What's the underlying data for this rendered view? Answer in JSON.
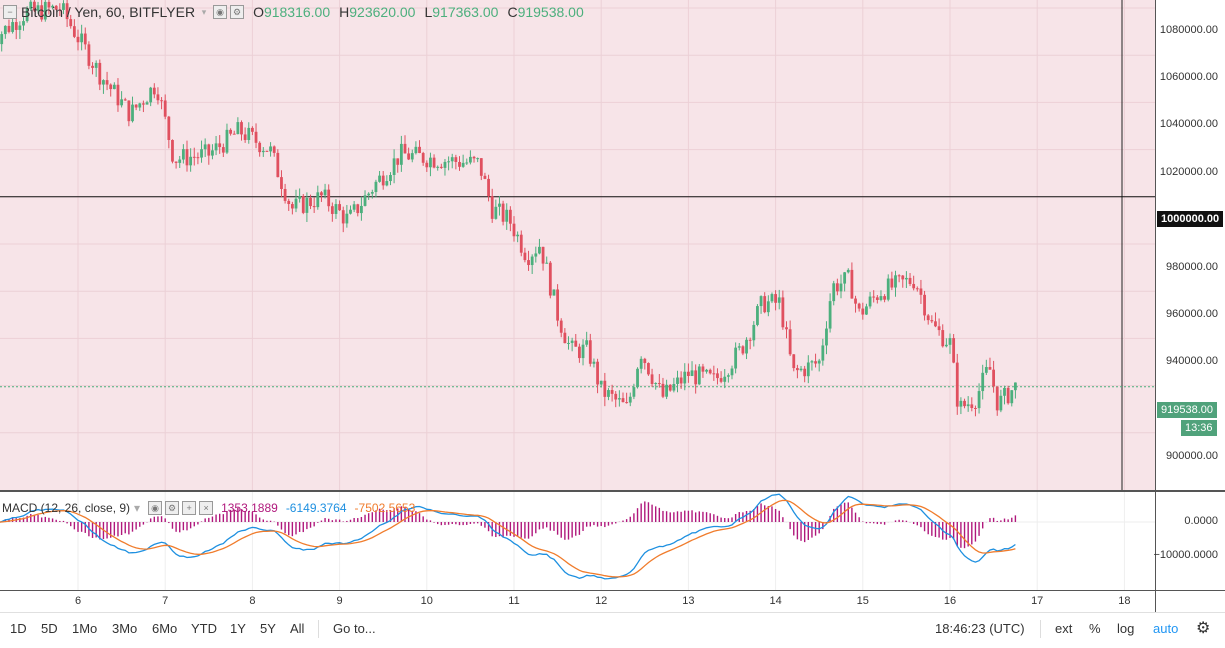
{
  "legend": {
    "title": "Bitcoin / Yen, 60, BITFLYER",
    "open_label": "O",
    "open_value": "918316.00",
    "high_label": "H",
    "high_value": "923620.00",
    "low_label": "L",
    "low_value": "917363.00",
    "close_label": "C",
    "close_value": "919538.00"
  },
  "macd": {
    "label": "MACD (12, 26, close, 9)",
    "hist_value": "1353.1889",
    "macd_value": "-6149.3764",
    "signal_value": "-7502.5653",
    "axis_labels": [
      "0.0000",
      "−10000.0000"
    ],
    "macd_color": "#1e90e0",
    "signal_color": "#f07c2c",
    "hist_color": "#b0187c"
  },
  "price_axis": {
    "labels": [
      "1080000.00",
      "1060000.00",
      "1040000.00",
      "1020000.00",
      "980000.00",
      "960000.00",
      "940000.00",
      "900000.00"
    ],
    "level_label": "1000000.00",
    "last_price_label": "919538.00",
    "countdown": "13:36"
  },
  "time_axis": {
    "labels": [
      "6",
      "7",
      "8",
      "9",
      "10",
      "11",
      "12",
      "13",
      "14",
      "15",
      "16",
      "17",
      "18"
    ]
  },
  "bottom_bar": {
    "timeframes": [
      "1D",
      "5D",
      "1Mo",
      "3Mo",
      "6Mo",
      "YTD",
      "1Y",
      "5Y",
      "All"
    ],
    "goto": "Go to...",
    "clock": "18:46:23 (UTC)",
    "ext": "ext",
    "percent": "%",
    "log": "log",
    "auto": "auto"
  },
  "colors": {
    "up": "#4caf7d",
    "down": "#e0505f",
    "pane_bg": "#f7e4e8"
  },
  "chart_data": {
    "type": "candlestick",
    "title": "Bitcoin / Yen, 60, BITFLYER",
    "x_ticks": [
      "6",
      "7",
      "8",
      "9",
      "10",
      "11",
      "12",
      "13",
      "14",
      "15",
      "16",
      "17",
      "18"
    ],
    "ylim": [
      880000,
      1090000
    ],
    "horizontal_level": 1000000,
    "last_price": 919538,
    "anchors": [
      {
        "day": 5.0,
        "price": 1066000
      },
      {
        "day": 5.4,
        "price": 1078000
      },
      {
        "day": 5.8,
        "price": 1080000
      },
      {
        "day": 6.25,
        "price": 1052000
      },
      {
        "day": 6.6,
        "price": 1035000
      },
      {
        "day": 6.9,
        "price": 1048000
      },
      {
        "day": 7.1,
        "price": 1016000
      },
      {
        "day": 7.5,
        "price": 1018000
      },
      {
        "day": 7.85,
        "price": 1028000
      },
      {
        "day": 8.2,
        "price": 1020000
      },
      {
        "day": 8.45,
        "price": 995000
      },
      {
        "day": 8.8,
        "price": 1000000
      },
      {
        "day": 9.1,
        "price": 990000
      },
      {
        "day": 9.4,
        "price": 1005000
      },
      {
        "day": 9.7,
        "price": 1018000
      },
      {
        "day": 10.1,
        "price": 1016000
      },
      {
        "day": 10.6,
        "price": 1014000
      },
      {
        "day": 10.75,
        "price": 995000
      },
      {
        "day": 10.95,
        "price": 990000
      },
      {
        "day": 11.15,
        "price": 975000
      },
      {
        "day": 11.3,
        "price": 980000
      },
      {
        "day": 11.5,
        "price": 950000
      },
      {
        "day": 11.65,
        "price": 935000
      },
      {
        "day": 11.85,
        "price": 935000
      },
      {
        "day": 12.0,
        "price": 918000
      },
      {
        "day": 12.3,
        "price": 910000
      },
      {
        "day": 12.45,
        "price": 935000
      },
      {
        "day": 12.7,
        "price": 915000
      },
      {
        "day": 13.0,
        "price": 925000
      },
      {
        "day": 13.3,
        "price": 922000
      },
      {
        "day": 13.6,
        "price": 935000
      },
      {
        "day": 13.85,
        "price": 955000
      },
      {
        "day": 14.05,
        "price": 955000
      },
      {
        "day": 14.2,
        "price": 925000
      },
      {
        "day": 14.5,
        "price": 930000
      },
      {
        "day": 14.65,
        "price": 962000
      },
      {
        "day": 14.85,
        "price": 965000
      },
      {
        "day": 14.95,
        "price": 950000
      },
      {
        "day": 15.2,
        "price": 960000
      },
      {
        "day": 15.5,
        "price": 964000
      },
      {
        "day": 15.6,
        "price": 965000
      },
      {
        "day": 15.8,
        "price": 945000
      },
      {
        "day": 16.0,
        "price": 938000
      },
      {
        "day": 16.1,
        "price": 910000
      },
      {
        "day": 16.3,
        "price": 915000
      },
      {
        "day": 16.45,
        "price": 928000
      },
      {
        "day": 16.55,
        "price": 912000
      },
      {
        "day": 16.75,
        "price": 919538
      }
    ]
  }
}
